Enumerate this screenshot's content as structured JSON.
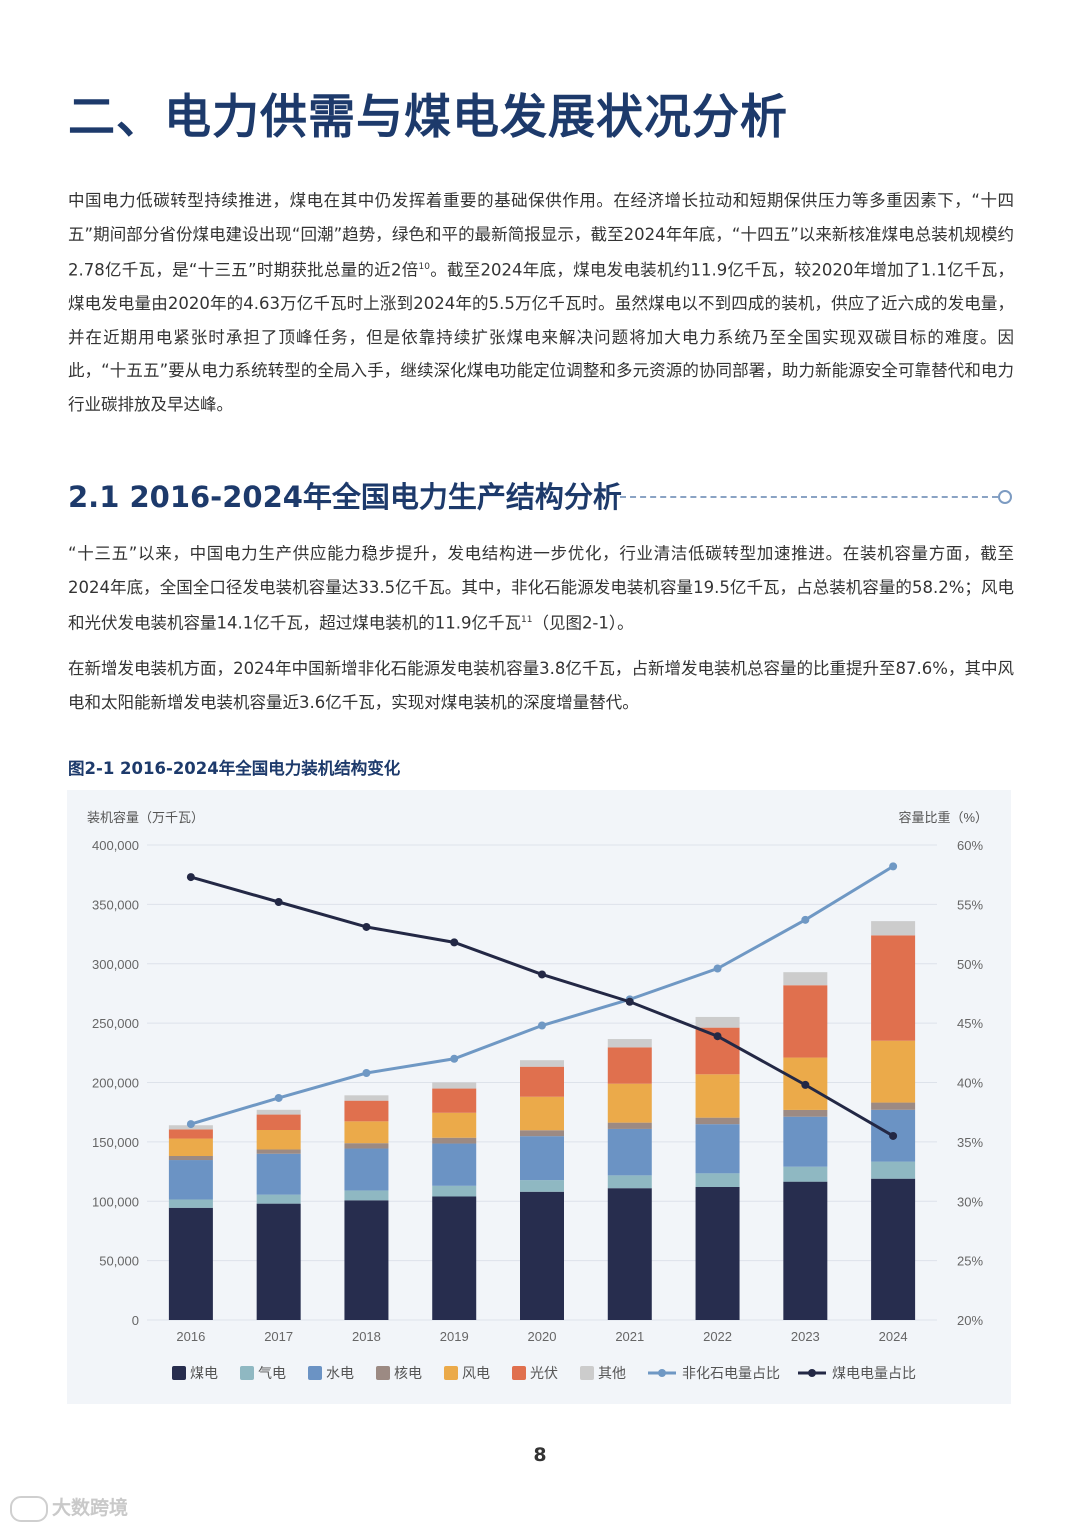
{
  "heading": "二、电力供需与煤电发展状况分析",
  "intro": {
    "part1": "中国电力低碳转型持续推进，煤电在其中仍发挥着重要的基础保供作用。在经济增长拉动和短期保供压力等多重因素下，“十四五”期间部分省份煤电建设出现“回潮”趋势，绿色和平的最新简报显示，截至2024年年底，“十四五”以来新核准煤电总装机规模约2.78亿千瓦，是“十三五”时期获批总量的近2倍",
    "ref": "10",
    "part2": "。截至2024年底，煤电发电装机约11.9亿千瓦，较2020年增加了1.1亿千瓦，煤电发电量由2020年的4.63万亿千瓦时上涨到2024年的5.5万亿千瓦时。虽然煤电以不到四成的装机，供应了近六成的发电量，并在近期用电紧张时承担了顶峰任务，但是依靠持续扩张煤电来解决问题将加大电力系统乃至全国实现双碳目标的难度。因此，“十五五”要从电力系统转型的全局入手，继续深化煤电功能定位调整和多元资源的协同部署，助力新能源安全可靠替代和电力行业碳排放及早达峰。"
  },
  "section": {
    "title": "2.1 2016-2024年全国电力生产结构分析",
    "para1_part1": "“十三五”以来，中国电力生产供应能力稳步提升，发电结构进一步优化，行业清洁低碳转型加速推进。在装机容量方面，截至2024年底，全国全口径发电装机容量达33.5亿千瓦。其中，非化石能源发电装机容量19.5亿千瓦，占总装机容量的58.2%；风电和光伏发电装机容量14.1亿千瓦，超过煤电装机的11.9亿千瓦",
    "para1_ref": "11",
    "para1_part2": "（见图2-1）。",
    "para2": "在新增发电装机方面，2024年中国新增非化石能源发电装机容量3.8亿千瓦，占新增发电装机总容量的比重提升至87.6%，其中风电和太阳能新增发电装机容量近3.6亿千瓦，实现对煤电装机的深度增量替代。"
  },
  "figure_title": "图2-1 2016-2024年全国电力装机结构变化",
  "chart_data": {
    "type": "bar",
    "stacked": true,
    "title": "图2-1 2016-2024年全国电力装机结构变化",
    "ylabel": "装机容量（万千瓦）",
    "y2label": "容量比重（%）",
    "ylim": [
      0,
      400000
    ],
    "y2lim": [
      20,
      60
    ],
    "yticks": [
      "0",
      "50,000",
      "100,000",
      "150,000",
      "200,000",
      "250,000",
      "300,000",
      "350,000",
      "400,000"
    ],
    "y2ticks": [
      "20%",
      "25%",
      "30%",
      "35%",
      "40%",
      "45%",
      "50%",
      "55%",
      "60%"
    ],
    "categories": [
      "2016",
      "2017",
      "2018",
      "2019",
      "2020",
      "2021",
      "2022",
      "2023",
      "2024"
    ],
    "series": [
      {
        "name": "煤电",
        "color": "#272d4e",
        "values": [
          94500,
          98000,
          100800,
          104000,
          108000,
          111000,
          112000,
          116500,
          119000
        ]
      },
      {
        "name": "气电",
        "color": "#8fb8c2",
        "values": [
          7000,
          7600,
          8300,
          9000,
          9800,
          10800,
          11500,
          12600,
          14400
        ]
      },
      {
        "name": "水电",
        "color": "#6b93c4",
        "values": [
          33200,
          34400,
          35300,
          35600,
          37000,
          39100,
          41400,
          42100,
          43600
        ]
      },
      {
        "name": "核电",
        "color": "#9c8a83",
        "values": [
          3400,
          3600,
          4500,
          4900,
          5000,
          5300,
          5500,
          5700,
          6100
        ]
      },
      {
        "name": "风电",
        "color": "#ebaa4a",
        "values": [
          14700,
          16400,
          18400,
          21000,
          28200,
          32800,
          36500,
          44100,
          52100
        ]
      },
      {
        "name": "光伏",
        "color": "#e0704e",
        "values": [
          7700,
          13000,
          17400,
          20400,
          25300,
          30600,
          39300,
          60900,
          88700
        ]
      },
      {
        "name": "其他",
        "color": "#cccccc",
        "values": [
          3500,
          4000,
          4500,
          5200,
          5500,
          7000,
          9000,
          11000,
          12000
        ]
      }
    ],
    "lines": [
      {
        "name": "非化石电量占比",
        "color": "#6f98c4",
        "axis": "right",
        "values": [
          36.5,
          38.7,
          40.8,
          42.0,
          44.8,
          47.0,
          49.6,
          53.7,
          58.2
        ]
      },
      {
        "name": "煤电电量占比",
        "color": "#232845",
        "axis": "right",
        "values": [
          57.3,
          55.2,
          53.1,
          51.8,
          49.1,
          46.8,
          43.9,
          39.8,
          35.5
        ]
      }
    ],
    "legend": [
      "煤电",
      "气电",
      "水电",
      "核电",
      "风电",
      "光伏",
      "其他",
      "非化石电量占比",
      "煤电电量占比"
    ],
    "legend_position": "bottom"
  },
  "page_number": "8",
  "watermark": "大数跨境"
}
